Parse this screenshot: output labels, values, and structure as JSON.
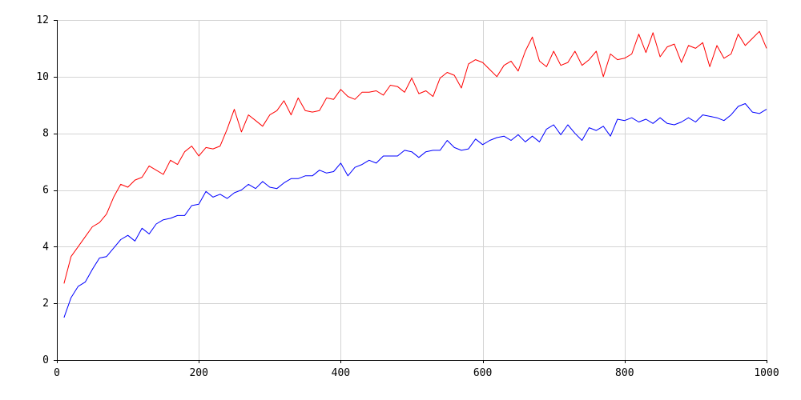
{
  "chart_data": {
    "type": "line",
    "title": "",
    "xlabel": "",
    "ylabel": "",
    "xlim": [
      0,
      1000
    ],
    "ylim": [
      0,
      12
    ],
    "grid": true,
    "xticks": [
      0,
      200,
      400,
      600,
      800,
      1000
    ],
    "yticks": [
      0,
      2,
      4,
      6,
      8,
      10,
      12
    ],
    "x": [
      10,
      20,
      30,
      40,
      50,
      60,
      70,
      80,
      90,
      100,
      110,
      120,
      130,
      140,
      150,
      160,
      170,
      180,
      190,
      200,
      210,
      220,
      230,
      240,
      250,
      260,
      270,
      280,
      290,
      300,
      310,
      320,
      330,
      340,
      350,
      360,
      370,
      380,
      390,
      400,
      410,
      420,
      430,
      440,
      450,
      460,
      470,
      480,
      490,
      500,
      510,
      520,
      530,
      540,
      550,
      560,
      570,
      580,
      590,
      600,
      610,
      620,
      630,
      640,
      650,
      660,
      670,
      680,
      690,
      700,
      710,
      720,
      730,
      740,
      750,
      760,
      770,
      780,
      790,
      800,
      810,
      820,
      830,
      840,
      850,
      860,
      870,
      880,
      890,
      900,
      910,
      920,
      930,
      940,
      950,
      960,
      970,
      980,
      990,
      1000
    ],
    "series": [
      {
        "color": "#ff0000",
        "values": [
          2.7,
          3.65,
          4.0,
          4.35,
          4.7,
          4.85,
          5.15,
          5.75,
          6.2,
          6.1,
          6.35,
          6.45,
          6.85,
          6.7,
          6.55,
          7.05,
          6.9,
          7.35,
          7.55,
          7.2,
          7.5,
          7.45,
          7.55,
          8.15,
          8.85,
          8.05,
          8.65,
          8.45,
          8.25,
          8.65,
          8.8,
          9.15,
          8.65,
          9.25,
          8.8,
          8.75,
          8.8,
          9.25,
          9.2,
          9.55,
          9.3,
          9.2,
          9.45,
          9.45,
          9.5,
          9.35,
          9.7,
          9.65,
          9.45,
          9.95,
          9.4,
          9.5,
          9.3,
          9.95,
          10.15,
          10.05,
          9.6,
          10.45,
          10.6,
          10.5,
          10.25,
          10.0,
          10.4,
          10.55,
          10.2,
          10.9,
          11.4,
          10.55,
          10.35,
          10.9,
          10.4,
          10.5,
          10.9,
          10.4,
          10.6,
          10.9,
          10.0,
          10.8,
          10.6,
          10.65,
          10.8,
          11.5,
          10.85,
          11.55,
          10.7,
          11.05,
          11.15,
          10.5,
          11.1,
          11.0,
          11.2,
          10.35,
          11.1,
          10.65,
          10.8,
          11.5,
          11.1,
          11.35,
          11.6,
          11.0
        ]
      },
      {
        "color": "#0000ff",
        "values": [
          1.5,
          2.2,
          2.6,
          2.75,
          3.2,
          3.6,
          3.65,
          3.95,
          4.25,
          4.4,
          4.2,
          4.65,
          4.45,
          4.8,
          4.95,
          5.0,
          5.1,
          5.1,
          5.45,
          5.5,
          5.95,
          5.75,
          5.85,
          5.7,
          5.9,
          6.0,
          6.2,
          6.05,
          6.3,
          6.1,
          6.05,
          6.25,
          6.4,
          6.4,
          6.5,
          6.5,
          6.7,
          6.6,
          6.65,
          6.95,
          6.5,
          6.8,
          6.9,
          7.05,
          6.95,
          7.2,
          7.2,
          7.2,
          7.4,
          7.35,
          7.15,
          7.35,
          7.4,
          7.4,
          7.75,
          7.5,
          7.4,
          7.45,
          7.8,
          7.6,
          7.75,
          7.85,
          7.9,
          7.75,
          7.95,
          7.7,
          7.9,
          7.7,
          8.15,
          8.3,
          7.95,
          8.3,
          8.0,
          7.75,
          8.2,
          8.1,
          8.25,
          7.9,
          8.5,
          8.45,
          8.55,
          8.4,
          8.5,
          8.35,
          8.55,
          8.35,
          8.3,
          8.4,
          8.55,
          8.4,
          8.65,
          8.6,
          8.55,
          8.45,
          8.65,
          8.95,
          9.05,
          8.75,
          8.7,
          8.85
        ]
      }
    ]
  }
}
